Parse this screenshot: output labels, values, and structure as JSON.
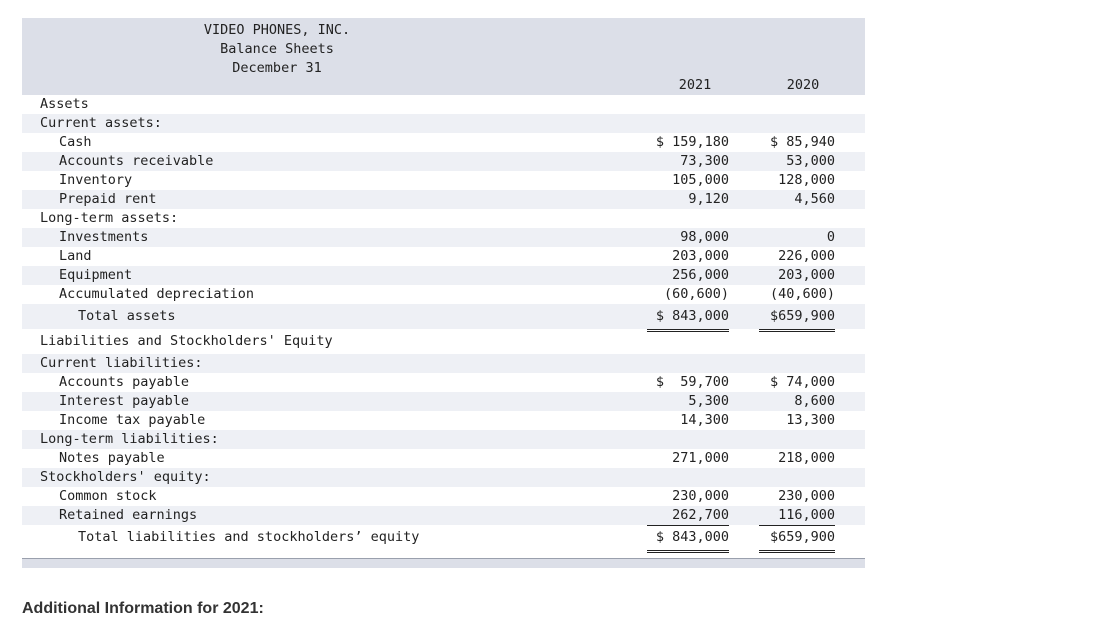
{
  "header": {
    "company": "VIDEO PHONES, INC.",
    "statement": "Balance Sheets",
    "date": "December 31",
    "year1": "2021",
    "year2": "2020"
  },
  "rows": {
    "assets": "Assets",
    "current_assets": "Current assets:",
    "cash": {
      "label": "Cash",
      "v1": "$ 159,180",
      "v2": "$ 85,940"
    },
    "accounts_receivable": {
      "label": "Accounts receivable",
      "v1": "73,300",
      "v2": "53,000"
    },
    "inventory": {
      "label": "Inventory",
      "v1": "105,000",
      "v2": "128,000"
    },
    "prepaid_rent": {
      "label": "Prepaid rent",
      "v1": "9,120",
      "v2": "4,560"
    },
    "long_term_assets": "Long-term assets:",
    "investments": {
      "label": "Investments",
      "v1": "98,000",
      "v2": "0"
    },
    "land": {
      "label": "Land",
      "v1": "203,000",
      "v2": "226,000"
    },
    "equipment": {
      "label": "Equipment",
      "v1": "256,000",
      "v2": "203,000"
    },
    "accum_dep": {
      "label": "Accumulated depreciation",
      "v1": "(60,600)",
      "v2": "(40,600)"
    },
    "total_assets": {
      "label": "Total assets",
      "v1": "$ 843,000",
      "v2": "$659,900"
    },
    "liab_equity": "Liabilities and Stockholders' Equity",
    "current_liabilities": "Current liabilities:",
    "accounts_payable": {
      "label": "Accounts payable",
      "v1": "$  59,700",
      "v2": "$ 74,000"
    },
    "interest_payable": {
      "label": "Interest payable",
      "v1": "5,300",
      "v2": "8,600"
    },
    "income_tax_payable": {
      "label": "Income tax payable",
      "v1": "14,300",
      "v2": "13,300"
    },
    "long_term_liabilities": "Long-term liabilities:",
    "notes_payable": {
      "label": "Notes payable",
      "v1": "271,000",
      "v2": "218,000"
    },
    "stockholders_equity": "Stockholders' equity:",
    "common_stock": {
      "label": "Common stock",
      "v1": "230,000",
      "v2": "230,000"
    },
    "retained_earnings": {
      "label": "Retained earnings",
      "v1": "262,700",
      "v2": "116,000"
    },
    "total_liab_equity": {
      "label": "Total liabilities and stockholders’ equity",
      "v1": "$ 843,000",
      "v2": "$659,900"
    }
  },
  "additional_info_title": "Additional Information for 2021:"
}
